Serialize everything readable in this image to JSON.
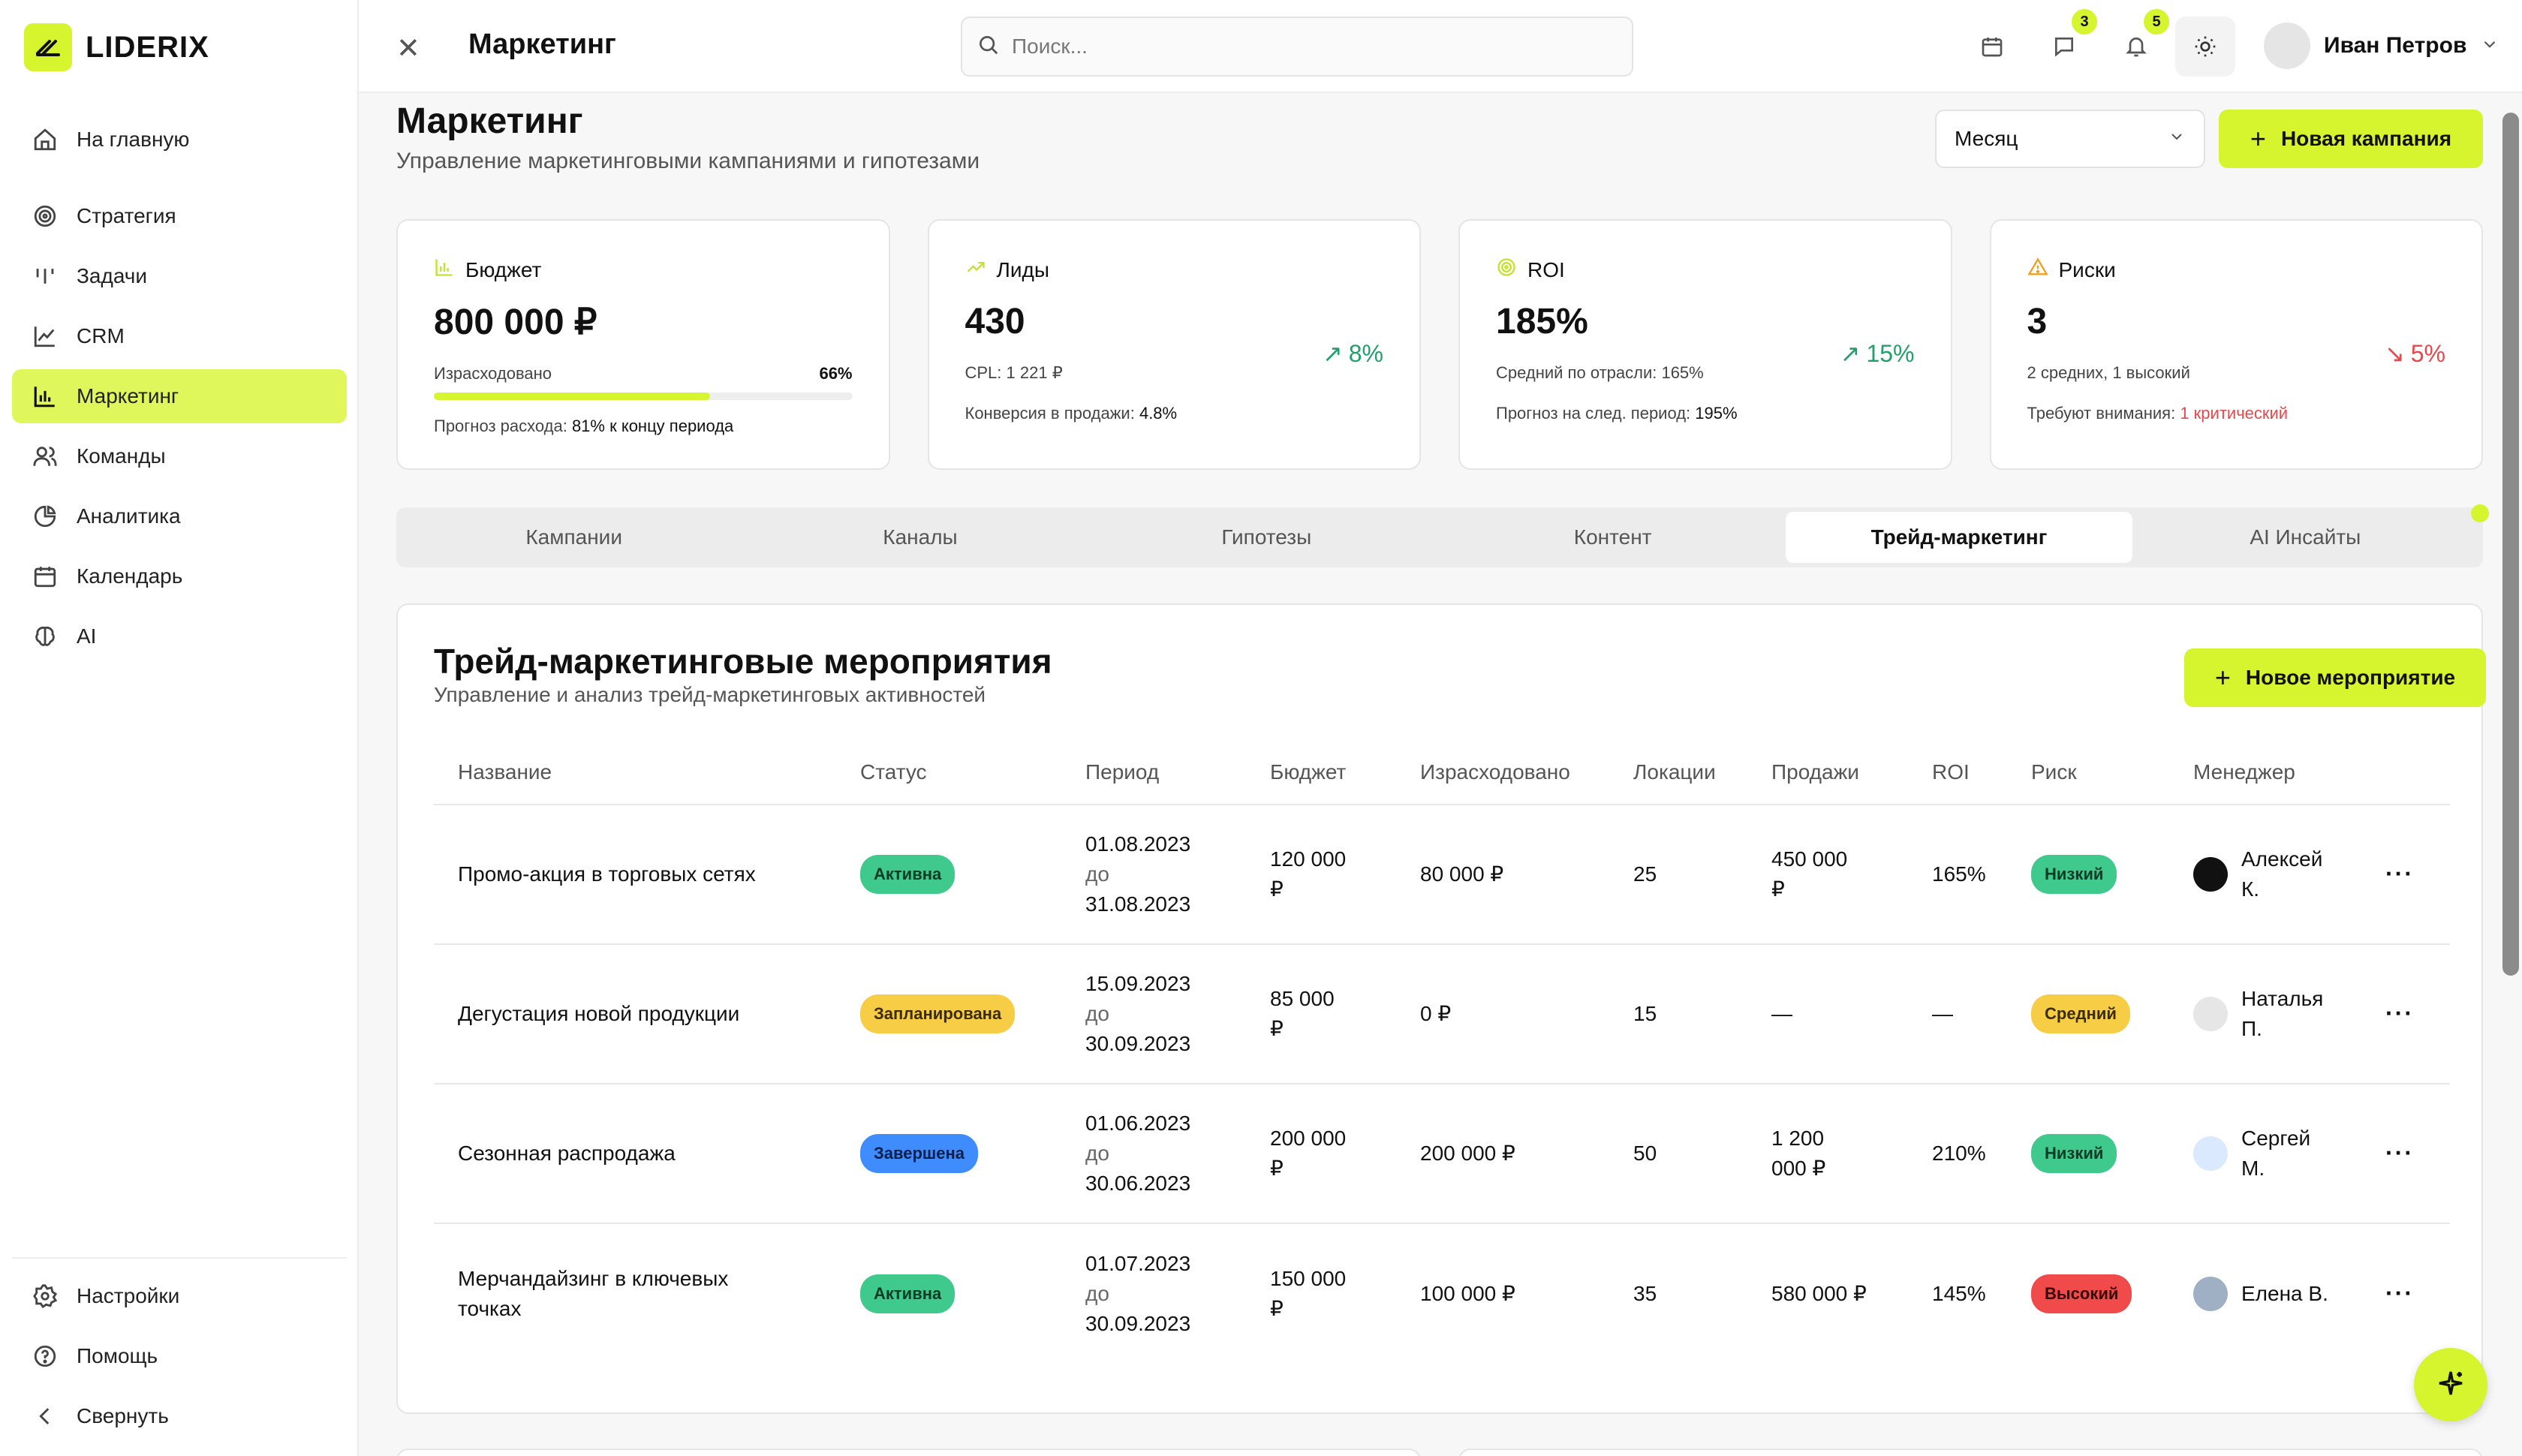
{
  "app": {
    "logo": "LIDERIX"
  },
  "sidebar": {
    "items": [
      {
        "label": "На главную",
        "icon": "home-icon"
      },
      {
        "label": "Стратегия",
        "icon": "target-icon"
      },
      {
        "label": "Задачи",
        "icon": "tasks-icon"
      },
      {
        "label": "CRM",
        "icon": "chart-line-icon"
      },
      {
        "label": "Маркетинг",
        "icon": "bar-chart-icon"
      },
      {
        "label": "Команды",
        "icon": "users-icon"
      },
      {
        "label": "Аналитика",
        "icon": "pie-chart-icon"
      },
      {
        "label": "Календарь",
        "icon": "calendar-icon"
      },
      {
        "label": "AI",
        "icon": "brain-icon"
      }
    ],
    "bottom": [
      {
        "label": "Настройки",
        "icon": "gear-icon"
      },
      {
        "label": "Помощь",
        "icon": "help-icon"
      },
      {
        "label": "Свернуть",
        "icon": "chevron-left-icon"
      }
    ]
  },
  "header": {
    "title": "Маркетинг",
    "search_placeholder": "Поиск...",
    "messages_badge": "3",
    "notifications_badge": "5",
    "user_name": "Иван Петров"
  },
  "page": {
    "title": "Маркетинг",
    "subtitle": "Управление маркетинговыми кампаниями и гипотезами",
    "period": "Месяц",
    "new_campaign": "Новая кампания"
  },
  "cards": {
    "budget": {
      "label": "Бюджет",
      "value": "800 000 ₽",
      "spent_label": "Израсходовано",
      "spent_pct": "66%",
      "spent_fraction": 0.66,
      "forecast_label": "Прогноз расхода:",
      "forecast_value": "81% к концу периода"
    },
    "leads": {
      "label": "Лиды",
      "value": "430",
      "cpl": "CPL: 1 221 ₽",
      "trend": "8%",
      "conv_label": "Конверсия в продажи:",
      "conv_value": "4.8%"
    },
    "roi": {
      "label": "ROI",
      "value": "185%",
      "industry": "Средний по отрасли: 165%",
      "trend": "15%",
      "forecast_label": "Прогноз на след. период:",
      "forecast_value": "195%"
    },
    "risks": {
      "label": "Риски",
      "value": "3",
      "detail": "2 средних, 1 высокий",
      "trend": "5%",
      "attention_label": "Требуют внимания:",
      "attention_value": "1 критический"
    }
  },
  "tabs": [
    "Кампании",
    "Каналы",
    "Гипотезы",
    "Контент",
    "Трейд-маркетинг",
    "AI Инсайты"
  ],
  "panel": {
    "title": "Трейд-маркетинговые мероприятия",
    "subtitle": "Управление и анализ трейд-маркетинговых активностей",
    "new_event": "Новое мероприятие",
    "columns": [
      "Название",
      "Статус",
      "Период",
      "Бюджет",
      "Израсходовано",
      "Локации",
      "Продажи",
      "ROI",
      "Риск",
      "Менеджер"
    ],
    "rows": [
      {
        "name": "Промо-акция в торговых сетях",
        "status": "Активна",
        "start": "01.08.2023",
        "to": "до",
        "end": "31.08.2023",
        "budget": "120 000 ₽",
        "spent": "80 000 ₽",
        "locations": "25",
        "sales": "450 000 ₽",
        "roi": "165%",
        "risk": "Низкий",
        "manager": "Алексей К."
      },
      {
        "name": "Дегустация новой продукции",
        "status": "Запланирована",
        "start": "15.09.2023",
        "to": "до",
        "end": "30.09.2023",
        "budget": "85 000 ₽",
        "spent": "0 ₽",
        "locations": "15",
        "sales": "—",
        "roi": "—",
        "risk": "Средний",
        "manager": "Наталья П."
      },
      {
        "name": "Сезонная распродажа",
        "status": "Завершена",
        "start": "01.06.2023",
        "to": "до",
        "end": "30.06.2023",
        "budget": "200 000 ₽",
        "spent": "200 000 ₽",
        "locations": "50",
        "sales": "1 200 000 ₽",
        "roi": "210%",
        "risk": "Низкий",
        "manager": "Сергей М."
      },
      {
        "name": "Мерчандайзинг в ключевых точках",
        "status": "Активна",
        "start": "01.07.2023",
        "to": "до",
        "end": "30.09.2023",
        "budget": "150 000 ₽",
        "spent": "100 000 ₽",
        "locations": "35",
        "sales": "580 000 ₽",
        "roi": "145%",
        "risk": "Высокий",
        "manager": "Елена В."
      }
    ]
  },
  "colors": {
    "accent": "#d6f52e",
    "green": "#3fc98d",
    "yellow": "#f7cd45",
    "blue": "#3f8cff",
    "red": "#f04a4a"
  }
}
